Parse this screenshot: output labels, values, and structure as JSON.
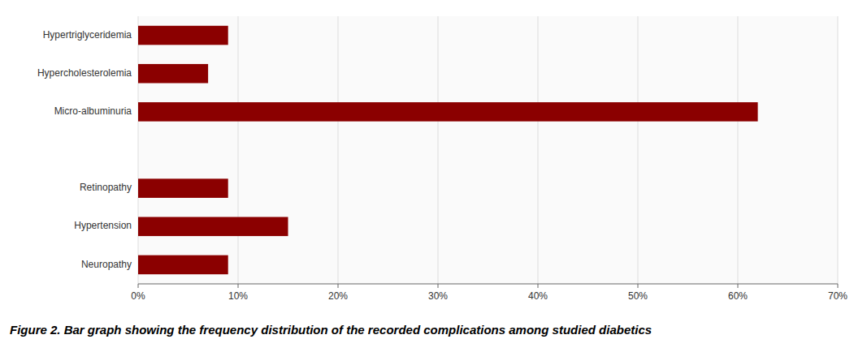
{
  "chart_data": {
    "type": "bar",
    "orientation": "horizontal",
    "title": "Figure 2. Bar graph showing the frequency distribution of the recorded complications among studied diabetics",
    "categories": [
      "Neuropathy",
      "Hypertension",
      "Retinopathy",
      null,
      "Micro-albuminuria",
      "Hypercholesterolemia",
      "Hypertriglyceridemia"
    ],
    "values": [
      9,
      15,
      9,
      0,
      62,
      7,
      9
    ],
    "color": "#8B0000",
    "xlim": [
      0,
      70
    ],
    "xticks": [
      {
        "value": 0,
        "label": "0%"
      },
      {
        "value": 10,
        "label": "10%"
      },
      {
        "value": 20,
        "label": "20%"
      },
      {
        "value": 30,
        "label": "30%"
      },
      {
        "value": 40,
        "label": "40%"
      },
      {
        "value": 50,
        "label": "50%"
      },
      {
        "value": 60,
        "label": "60%"
      },
      {
        "value": 70,
        "label": "70%"
      }
    ],
    "grid": true
  }
}
